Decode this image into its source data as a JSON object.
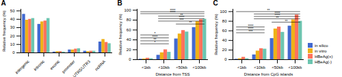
{
  "chart_data": [
    {
      "type": "bar",
      "title": "A",
      "categories": [
        "intergenic",
        "intronic",
        "exonic",
        "promoter",
        "UTR5/UTR3",
        "ncRNA"
      ],
      "series": [
        {
          "name": "in silico",
          "values": [
            46,
            34,
            1,
            3.5,
            2,
            13
          ]
        },
        {
          "name": "in vitro",
          "values": [
            39,
            37,
            1.5,
            3.5,
            1.5,
            16
          ]
        },
        {
          "name": "HBeAg(+)",
          "values": [
            40,
            38,
            1.5,
            4.5,
            2,
            12.5
          ]
        },
        {
          "name": "HBeAg(-)",
          "values": [
            41,
            41,
            1,
            5,
            2,
            11
          ]
        }
      ],
      "ylabel": "Relative frequency (%)",
      "ylim": [
        0,
        52
      ],
      "yticks": [
        0,
        10,
        20,
        30,
        40,
        50
      ],
      "grid": false,
      "legend": false
    },
    {
      "type": "bar",
      "title": "B",
      "categories": [
        "<1kb",
        "<10kb",
        "<50kb",
        "<100kb"
      ],
      "series": [
        {
          "name": "in silico",
          "values": [
            1,
            9,
            42,
            65
          ]
        },
        {
          "name": "in vitro",
          "values": [
            1.5,
            14,
            52,
            77
          ]
        },
        {
          "name": "HBeAg(+)",
          "values": [
            3,
            20,
            59,
            81
          ]
        },
        {
          "name": "HBeAg(-)",
          "values": [
            2,
            15,
            56,
            82
          ]
        }
      ],
      "xlabel": "Distance from TSS",
      "ylabel": "Relative frequency (%)",
      "ylim": [
        0,
        102
      ],
      "yticks": [
        0,
        20,
        40,
        60,
        80,
        100
      ],
      "annotations": [
        {
          "text": "****",
          "x1": "<1kb",
          "x2": "<100kb",
          "y": 97
        },
        {
          "text": "****",
          "x1": "<1kb",
          "x2": "<100kb",
          "y": 93
        },
        {
          "text": "**",
          "x1": "<10kb",
          "x2": "<100kb",
          "y": 88
        },
        {
          "text": "****",
          "x1": "<10kb",
          "x2": "<100kb",
          "y": 83
        },
        {
          "text": "***",
          "x1": "<10kb",
          "x2": "<100kb",
          "y": 78
        },
        {
          "text": "**",
          "x1": "<50kb",
          "x2": "<100kb",
          "y": 72
        },
        {
          "text": "*",
          "x1": "<1kb",
          "x2": "<10kb",
          "y": 50
        },
        {
          "text": "****",
          "x1": "<1kb",
          "x2": "<10kb",
          "y": 44
        },
        {
          "text": "**",
          "x1": "<1kb",
          "x2": "<10kb",
          "y": 38
        },
        {
          "text": "*",
          "x1": "<1kb",
          "x2": "<10kb",
          "y": 32
        }
      ],
      "grid": false,
      "legend": false
    },
    {
      "type": "bar",
      "title": "C",
      "categories": [
        "<1kb",
        "<10kb",
        "<50kb",
        "<100kb"
      ],
      "series": [
        {
          "name": "in silico",
          "values": [
            1,
            10,
            44,
            70
          ]
        },
        {
          "name": "in vitro",
          "values": [
            2,
            18,
            64,
            83
          ]
        },
        {
          "name": "HBeAg(+)",
          "values": [
            5,
            23,
            68,
            93
          ]
        },
        {
          "name": "HBeAg(-)",
          "values": [
            2,
            22,
            57,
            80
          ]
        }
      ],
      "xlabel": "Distance from CpG islands",
      "ylabel": "Relative frequency (%)",
      "ylim": [
        0,
        105
      ],
      "yticks": [
        0,
        20,
        40,
        60,
        80,
        100
      ],
      "annotations": [
        {
          "text": "**",
          "x1": "<1kb",
          "x2": "<100kb",
          "y": 100
        },
        {
          "text": "****",
          "x1": "<10kb",
          "x2": "<100kb",
          "y": 95
        },
        {
          "text": "****",
          "x1": "<10kb",
          "x2": "<100kb",
          "y": 90
        },
        {
          "text": "**",
          "x1": "<10kb",
          "x2": "<100kb",
          "y": 85
        },
        {
          "text": "**",
          "x1": "<50kb",
          "x2": "<100kb",
          "y": 78
        },
        {
          "text": "****",
          "x1": "<1kb",
          "x2": "<10kb",
          "y": 68
        },
        {
          "text": "****",
          "x1": "<1kb",
          "x2": "<10kb",
          "y": 62
        },
        {
          "text": "***",
          "x1": "<1kb",
          "x2": "<10kb",
          "y": 56
        }
      ],
      "grid": false,
      "legend": "lower right"
    }
  ]
}
